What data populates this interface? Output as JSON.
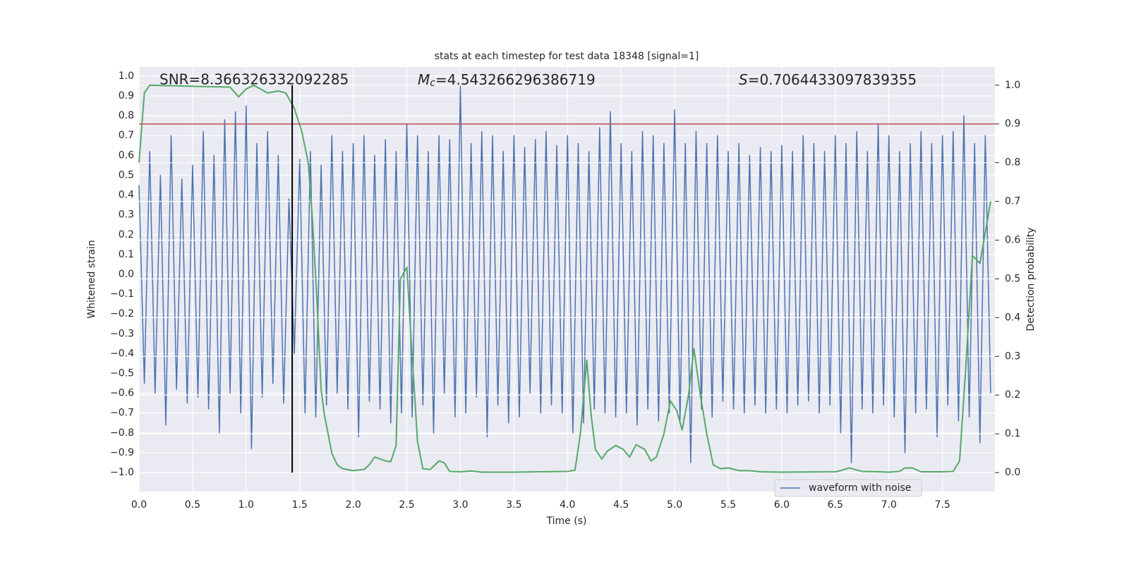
{
  "chart_data": {
    "type": "line",
    "title": "stats at each timestep for test data 18348 [signal=1]",
    "xlabel": "Time (s)",
    "ylabel": "Whitened strain",
    "y2label": "Detection probability",
    "annotations": {
      "snr": "SNR=8.366326332092285",
      "mc": {
        "symbol": "M",
        "subscript": "c",
        "text": "=4.543266296386719"
      },
      "s": {
        "symbol": "S",
        "text": "=0.7064433097839355"
      }
    },
    "xlim": [
      0,
      7.99
    ],
    "ylim": [
      -1.096,
      1.046
    ],
    "y2lim": [
      -0.049,
      1.047
    ],
    "xticks": [
      {
        "value": 0,
        "label": "0.0"
      },
      0.5,
      {
        "value": 1,
        "label": "1.0"
      },
      1.5,
      {
        "value": 2,
        "label": "2.0"
      },
      2.5,
      {
        "value": 3,
        "label": "3.0"
      },
      3.5,
      {
        "value": 4,
        "label": "4.0"
      },
      4.5,
      {
        "value": 5,
        "label": "5.0"
      },
      5.5,
      {
        "value": 6,
        "label": "6.0"
      },
      6.5,
      {
        "value": 7,
        "label": "7.0"
      },
      7.5
    ],
    "yticks": [
      {
        "value": -1,
        "label": "−1.0"
      },
      {
        "value": -0.9,
        "label": "−0.9"
      },
      {
        "value": -0.8,
        "label": "−0.8"
      },
      {
        "value": -0.7,
        "label": "−0.7"
      },
      {
        "value": -0.6,
        "label": "−0.6"
      },
      {
        "value": -0.5,
        "label": "−0.5"
      },
      {
        "value": -0.4,
        "label": "−0.4"
      },
      {
        "value": -0.3,
        "label": "−0.3"
      },
      {
        "value": -0.2,
        "label": "−0.2"
      },
      {
        "value": -0.1,
        "label": "−0.1"
      },
      {
        "value": 0,
        "label": "0.0"
      },
      0.1,
      0.2,
      0.3,
      0.4,
      0.5,
      0.6,
      0.7,
      0.8,
      0.9,
      {
        "value": 1,
        "label": "1.0"
      }
    ],
    "y2ticks": [
      {
        "value": 0,
        "label": "0.0"
      },
      0.1,
      0.2,
      0.3,
      0.4,
      0.5,
      0.6,
      0.7,
      0.8,
      0.9,
      {
        "value": 1,
        "label": "1.0"
      }
    ],
    "grid": true,
    "legend": "lower right",
    "threshold": {
      "value": 0.9,
      "axis": "y2",
      "color": "#c44e52"
    },
    "marker_line": {
      "x": 1.43,
      "from": 0,
      "to": 1,
      "axis": "y2",
      "color": "#000000"
    },
    "series": [
      {
        "name": "waveform with noise",
        "color": "#4c72b0",
        "x": [
          0,
          0.05,
          0.1,
          0.15,
          0.2,
          0.25,
          0.3,
          0.35,
          0.4,
          0.45,
          0.5,
          0.55,
          0.6,
          0.65,
          0.7,
          0.75,
          0.8,
          0.85,
          0.9,
          0.95,
          1,
          1.05,
          1.1,
          1.15,
          1.2,
          1.25,
          1.3,
          1.35,
          1.4,
          1.45,
          1.5,
          1.55,
          1.6,
          1.65,
          1.7,
          1.75,
          1.8,
          1.85,
          1.9,
          1.95,
          2,
          2.05,
          2.1,
          2.15,
          2.2,
          2.25,
          2.3,
          2.35,
          2.4,
          2.45,
          2.5,
          2.55,
          2.6,
          2.65,
          2.7,
          2.75,
          2.8,
          2.85,
          2.9,
          2.95,
          3,
          3.05,
          3.1,
          3.15,
          3.2,
          3.25,
          3.3,
          3.35,
          3.4,
          3.45,
          3.5,
          3.55,
          3.6,
          3.65,
          3.7,
          3.75,
          3.8,
          3.85,
          3.9,
          3.95,
          4,
          4.05,
          4.1,
          4.15,
          4.2,
          4.25,
          4.3,
          4.35,
          4.4,
          4.45,
          4.5,
          4.55,
          4.6,
          4.65,
          4.7,
          4.75,
          4.8,
          4.85,
          4.9,
          4.95,
          5,
          5.05,
          5.1,
          5.15,
          5.2,
          5.25,
          5.3,
          5.35,
          5.4,
          5.45,
          5.5,
          5.55,
          5.6,
          5.65,
          5.7,
          5.75,
          5.8,
          5.85,
          5.9,
          5.95,
          6,
          6.05,
          6.1,
          6.15,
          6.2,
          6.25,
          6.3,
          6.35,
          6.4,
          6.45,
          6.5,
          6.55,
          6.6,
          6.65,
          6.7,
          6.75,
          6.8,
          6.85,
          6.9,
          6.95,
          7,
          7.05,
          7.1,
          7.15,
          7.2,
          7.25,
          7.3,
          7.35,
          7.4,
          7.45,
          7.5,
          7.55,
          7.6,
          7.65,
          7.7,
          7.75,
          7.8,
          7.85,
          7.9,
          7.95
        ],
        "values": [
          0.45,
          -0.55,
          0.62,
          -0.6,
          0.5,
          -0.76,
          0.7,
          -0.58,
          0.48,
          -0.65,
          0.55,
          -0.62,
          0.72,
          -0.68,
          0.6,
          -0.8,
          0.78,
          -0.6,
          0.82,
          -0.7,
          0.85,
          -0.88,
          0.66,
          -0.62,
          0.72,
          -0.55,
          0.6,
          -0.65,
          0.38,
          -0.4,
          0.58,
          -0.7,
          0.62,
          -0.72,
          0.55,
          -0.66,
          0.7,
          -0.6,
          0.62,
          -0.68,
          0.66,
          -0.82,
          0.7,
          -0.64,
          0.6,
          -0.68,
          0.68,
          -0.75,
          0.62,
          -0.7,
          0.76,
          -0.72,
          0.7,
          -0.66,
          0.62,
          -0.8,
          0.7,
          -0.6,
          0.68,
          -0.72,
          0.95,
          -0.7,
          0.66,
          -0.62,
          0.72,
          -0.82,
          0.7,
          -0.66,
          0.62,
          -0.75,
          0.7,
          -0.72,
          0.64,
          -0.6,
          0.68,
          -0.7,
          0.72,
          -0.66,
          0.65,
          -0.7,
          0.7,
          -0.8,
          0.66,
          -0.75,
          0.62,
          -0.68,
          0.74,
          -0.7,
          0.82,
          -0.72,
          0.66,
          -0.7,
          0.62,
          -0.76,
          0.72,
          -0.68,
          0.7,
          -0.74,
          0.66,
          -0.7,
          0.83,
          -0.74,
          0.66,
          -0.95,
          0.72,
          -0.68,
          0.66,
          -0.72,
          0.7,
          -0.64,
          0.62,
          -0.68,
          0.66,
          -0.7,
          0.6,
          -0.66,
          0.64,
          -0.7,
          0.62,
          -0.68,
          0.65,
          -0.7,
          0.62,
          -0.66,
          0.7,
          -0.64,
          0.66,
          -0.7,
          0.62,
          -0.66,
          0.7,
          -0.8,
          0.66,
          -0.95,
          0.72,
          -0.68,
          0.62,
          -0.7,
          0.76,
          -0.66,
          0.7,
          -0.72,
          0.62,
          -0.9,
          0.66,
          -0.7,
          0.72,
          -0.68,
          0.66,
          -0.82,
          0.7,
          -0.66,
          0.72,
          -0.74,
          0.8,
          -0.72,
          0.66,
          -0.85,
          0.7,
          -0.6
        ]
      },
      {
        "axis": "y2",
        "color": "#55a868",
        "x": [
          0,
          0.05,
          0.1,
          0.85,
          0.93,
          1,
          1.07,
          1.2,
          1.3,
          1.37,
          1.45,
          1.52,
          1.58,
          1.62,
          1.66,
          1.7,
          1.73,
          1.8,
          1.85,
          1.9,
          2,
          2.1,
          2.15,
          2.2,
          2.3,
          2.35,
          2.4,
          2.44,
          2.5,
          2.55,
          2.6,
          2.65,
          2.72,
          2.8,
          2.85,
          2.9,
          3,
          3.1,
          3.2,
          3.5,
          4,
          4.07,
          4.12,
          4.18,
          4.22,
          4.26,
          4.32,
          4.37,
          4.45,
          4.52,
          4.58,
          4.64,
          4.72,
          4.78,
          4.83,
          4.9,
          4.96,
          5.02,
          5.07,
          5.13,
          5.18,
          5.24,
          5.3,
          5.36,
          5.43,
          5.5,
          5.6,
          5.7,
          5.8,
          6,
          6.5,
          6.55,
          6.63,
          6.75,
          6.9,
          7,
          7.1,
          7.15,
          7.22,
          7.3,
          7.4,
          7.5,
          7.6,
          7.66,
          7.72,
          7.78,
          7.85,
          7.95
        ],
        "values": [
          0.8,
          0.98,
          1,
          0.995,
          0.97,
          0.99,
          1,
          0.98,
          0.985,
          0.98,
          0.94,
          0.88,
          0.8,
          0.65,
          0.45,
          0.215,
          0.15,
          0.05,
          0.02,
          0.01,
          0.005,
          0.008,
          0.02,
          0.04,
          0.03,
          0.028,
          0.07,
          0.5,
          0.53,
          0.3,
          0.08,
          0.01,
          0.008,
          0.03,
          0.025,
          0.003,
          0.002,
          0.004,
          0.001,
          0.001,
          0.003,
          0.006,
          0.1,
          0.29,
          0.15,
          0.06,
          0.035,
          0.055,
          0.07,
          0.06,
          0.04,
          0.072,
          0.06,
          0.03,
          0.04,
          0.1,
          0.185,
          0.16,
          0.11,
          0.2,
          0.32,
          0.2,
          0.1,
          0.02,
          0.01,
          0.012,
          0.005,
          0.005,
          0.002,
          0.001,
          0.002,
          0.005,
          0.012,
          0.003,
          0.002,
          0.001,
          0.003,
          0.012,
          0.012,
          0.002,
          0.002,
          0.002,
          0.003,
          0.03,
          0.28,
          0.56,
          0.54,
          0.7
        ]
      }
    ]
  }
}
